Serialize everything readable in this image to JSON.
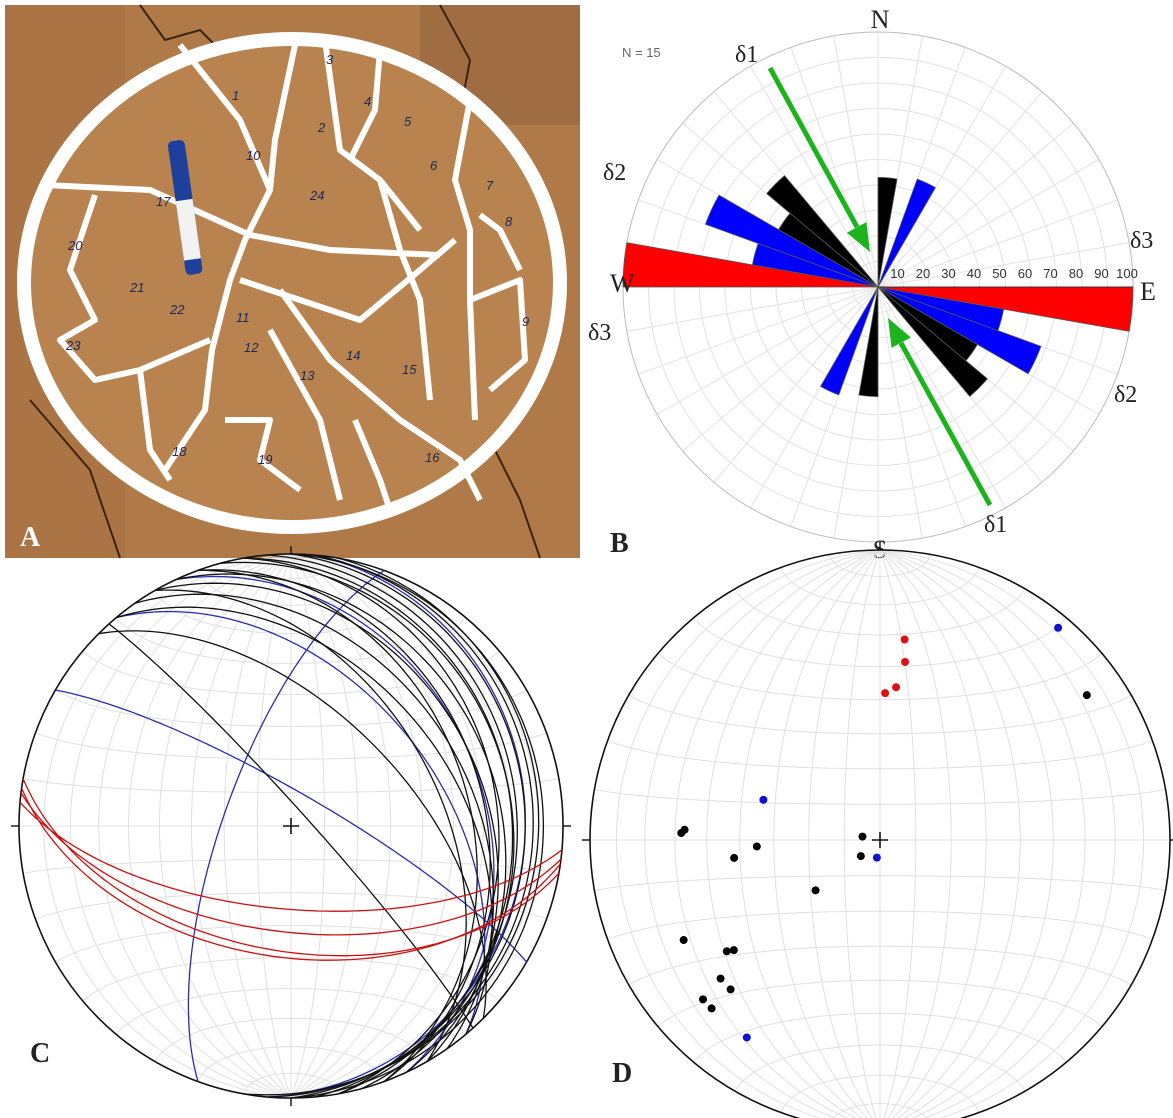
{
  "photo": {
    "label": "A",
    "marks": [
      "1",
      "2",
      "3",
      "4",
      "5",
      "6",
      "7",
      "8",
      "9",
      "10",
      "11",
      "12",
      "13",
      "14",
      "15",
      "16",
      "17",
      "18",
      "19",
      "20",
      "21",
      "22",
      "23",
      "24"
    ]
  },
  "chart_data": [
    {
      "type": "rose",
      "label": "B",
      "annotation": "N = 15",
      "directions": [
        "N",
        "E",
        "S",
        "W"
      ],
      "stress_labels": [
        "δ1",
        "δ2",
        "δ3",
        "δ3",
        "δ2",
        "δ1"
      ],
      "rlim": [
        0,
        100
      ],
      "rticks": [
        10,
        20,
        30,
        40,
        50,
        60,
        70,
        80,
        90,
        100
      ],
      "bin_width": 10,
      "grid": true,
      "x": [
        5,
        25,
        95,
        105,
        115,
        125,
        135,
        185,
        205,
        275,
        285,
        295,
        305,
        315
      ],
      "series": [
        {
          "color": "#0000ff",
          "values": [
            null,
            45,
            null,
            50,
            68,
            null,
            null,
            null,
            45,
            null,
            50,
            72,
            null,
            null
          ]
        },
        {
          "color": "#000000",
          "values": [
            43,
            null,
            null,
            null,
            null,
            45,
            56,
            43,
            null,
            null,
            null,
            null,
            45,
            57
          ]
        },
        {
          "color": "#ff0000",
          "values": [
            null,
            null,
            100,
            null,
            null,
            null,
            null,
            null,
            null,
            100,
            null,
            null,
            null,
            null
          ]
        }
      ]
    },
    {
      "type": "stereonet-planes",
      "label": "C",
      "grid": true,
      "series": [
        {
          "color": "#2b2bb0",
          "strike": [
            300,
            335,
            5,
            320,
            200
          ],
          "dip": [
            80,
            30,
            15,
            45,
            70
          ]
        },
        {
          "color": "#111111",
          "strike": [
            320,
            325,
            330,
            335,
            340,
            345,
            350,
            355,
            0,
            5,
            10,
            315,
            330,
            340,
            350,
            0,
            318
          ],
          "dip": [
            40,
            35,
            30,
            25,
            30,
            20,
            25,
            18,
            15,
            12,
            10,
            55,
            45,
            35,
            20,
            8,
            85
          ]
        },
        {
          "color": "#cc1111",
          "strike": [
            95,
            97,
            100,
            98
          ],
          "dip": [
            65,
            58,
            52,
            50
          ]
        }
      ]
    },
    {
      "type": "stereonet-poles",
      "label": "D",
      "grid": true,
      "series": [
        {
          "color": "#e01010",
          "trend": [
            7,
            8,
            6,
            2
          ],
          "plunge": [
            31,
            38,
            46,
            48
          ]
        },
        {
          "color": "#1010d0",
          "trend": [
            40,
            289,
            190,
            214
          ],
          "plunge": [
            5,
            55,
            85,
            19
          ]
        },
        {
          "color": "#000000",
          "trend": [
            55,
            272,
            273,
            263,
            267,
            281,
            230,
            232,
            243,
            234,
            233,
            229,
            225,
            228,
            225
          ],
          "plunge": [
            14,
            32,
            33,
            48,
            55,
            85,
            83,
            67,
            25,
            35,
            37,
            28,
            28,
            19,
            19
          ]
        }
      ]
    }
  ]
}
